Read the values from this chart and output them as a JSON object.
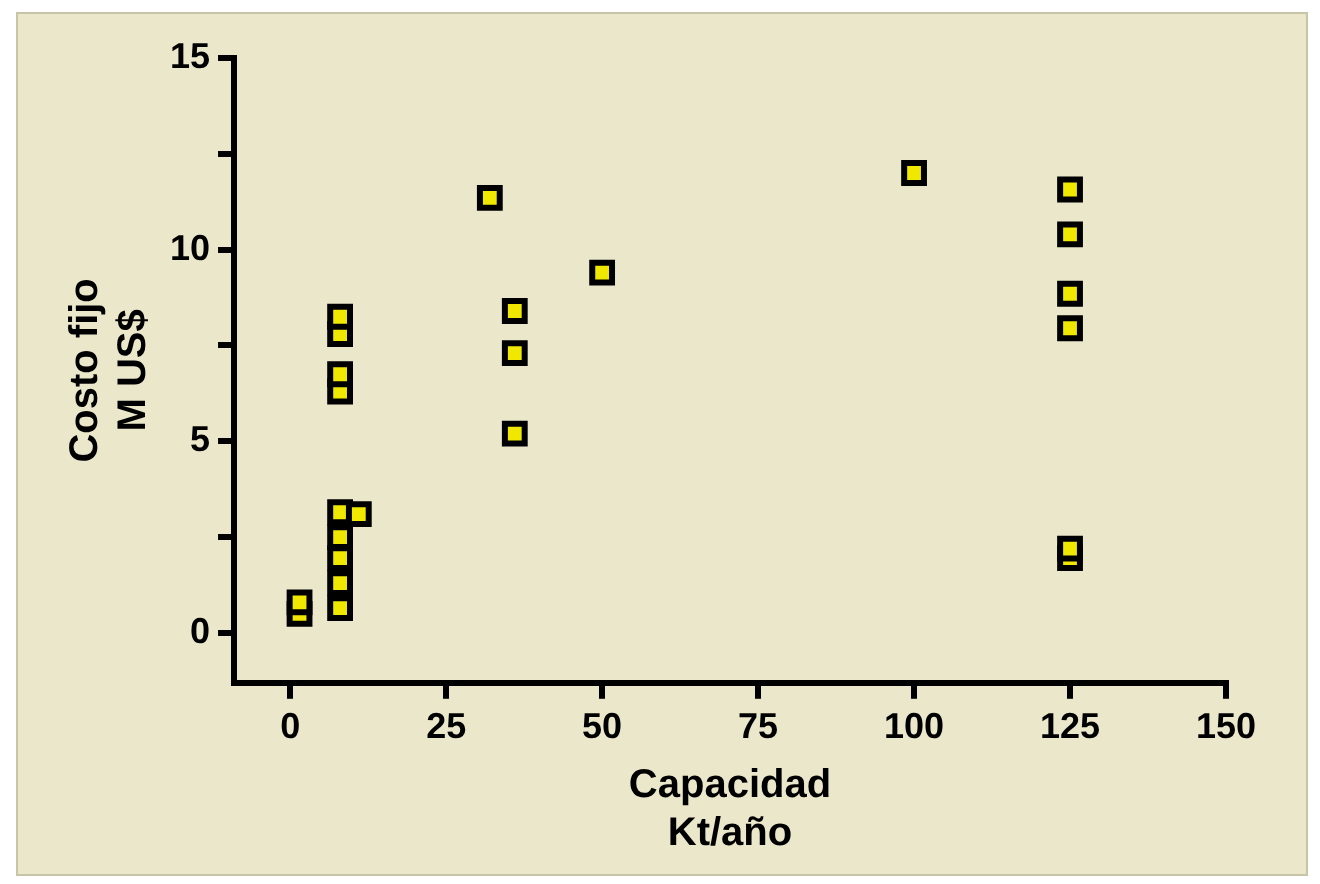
{
  "chart_data": {
    "type": "scatter",
    "xlabel": "Capacidad\nKt/año",
    "ylabel": "Costo fijo\nM US$",
    "x": [
      1.5,
      1.5,
      8,
      8,
      8,
      8,
      8,
      8,
      8,
      8,
      8,
      11,
      32,
      36,
      36,
      36,
      50,
      100,
      125,
      125,
      125,
      125,
      125,
      125
    ],
    "series": [
      {
        "color": "#f0e800",
        "values": [
          0.5,
          0.8,
          7.8,
          8.25,
          6.3,
          6.75,
          3.15,
          2.5,
          1.95,
          1.3,
          0.65,
          3.1,
          11.35,
          8.4,
          7.3,
          5.2,
          9.4,
          12.0,
          11.57,
          10.4,
          8.85,
          7.95,
          1.95,
          2.2
        ]
      }
    ],
    "xlim": [
      -9,
      150
    ],
    "xticks": [
      0,
      25,
      50,
      75,
      100,
      125,
      150
    ],
    "ylim": [
      -1.3,
      15
    ],
    "yticks": [
      0,
      {
        "value": 2.5,
        "label": null
      },
      5,
      {
        "value": 7.5,
        "label": null
      },
      10,
      {
        "value": 12.5,
        "label": null
      },
      15
    ],
    "marker": "square",
    "grid": false,
    "legend": false
  }
}
